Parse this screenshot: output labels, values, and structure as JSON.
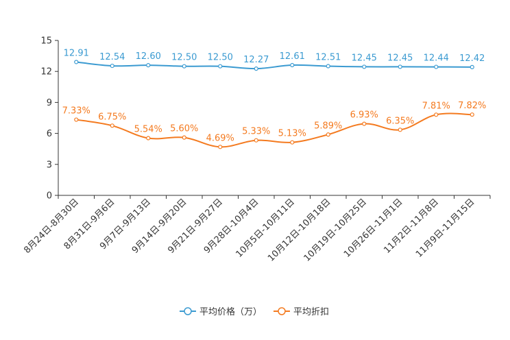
{
  "chart_data": {
    "type": "line",
    "title": "",
    "xlabel": "",
    "ylabel": "",
    "ylim": [
      0,
      15
    ],
    "yticks": [
      0,
      3,
      6,
      9,
      12,
      15
    ],
    "categories": [
      "8月24日-8月30日",
      "8月31日-9月6日",
      "9月7日-9月13日",
      "9月14日-9月20日",
      "9月21日-9月27日",
      "9月28日-10月4日",
      "10月5日-10月11日",
      "10月12日-10月18日",
      "10月19日-10月25日",
      "10月26日-11月1日",
      "11月2日-11月8日",
      "11月9日-11月15日"
    ],
    "series": [
      {
        "name": "平均价格（万）",
        "color": "#3a9ad1",
        "values": [
          12.91,
          12.54,
          12.6,
          12.5,
          12.5,
          12.27,
          12.61,
          12.51,
          12.45,
          12.45,
          12.44,
          12.42
        ],
        "labels": [
          "12.91",
          "12.54",
          "12.60",
          "12.50",
          "12.50",
          "12.27",
          "12.61",
          "12.51",
          "12.45",
          "12.45",
          "12.44",
          "12.42"
        ]
      },
      {
        "name": "平均折扣",
        "color": "#f47a1f",
        "values": [
          7.33,
          6.75,
          5.54,
          5.6,
          4.69,
          5.33,
          5.13,
          5.89,
          6.93,
          6.35,
          7.81,
          7.82
        ],
        "labels": [
          "7.33%",
          "6.75%",
          "5.54%",
          "5.60%",
          "4.69%",
          "5.33%",
          "5.13%",
          "5.89%",
          "6.93%",
          "6.35%",
          "7.81%",
          "7.82%"
        ]
      }
    ],
    "legend": "bottom-center",
    "grid": false
  }
}
